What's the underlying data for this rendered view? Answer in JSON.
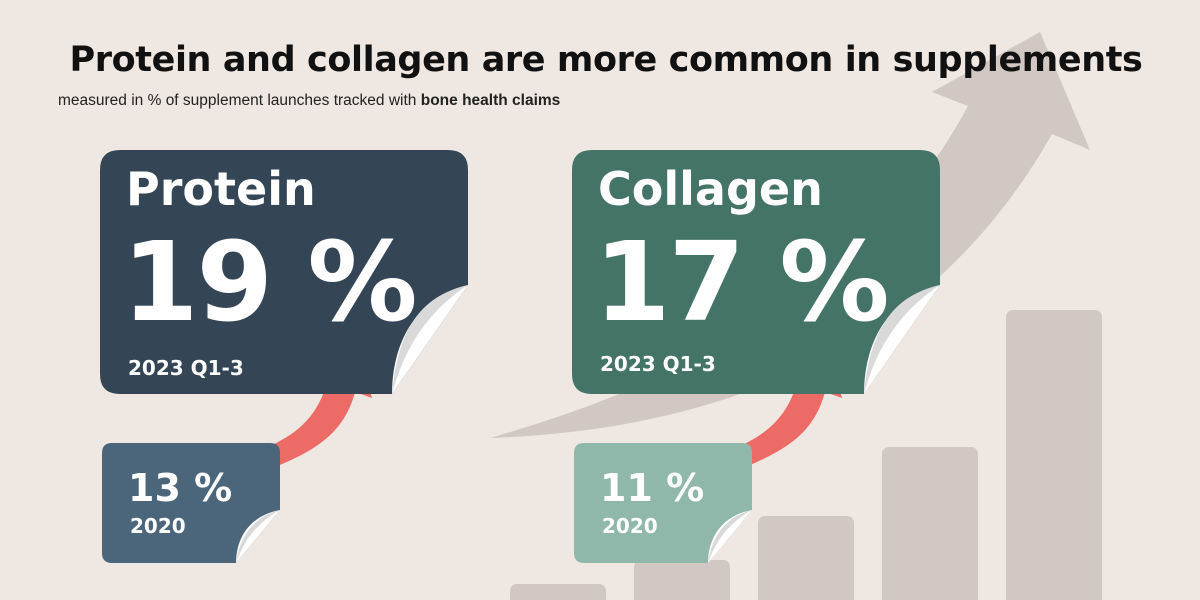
{
  "header": {
    "title": "Protein and collagen are more common in supplements",
    "subtitle_prefix": "measured in % of supplement launches tracked with ",
    "subtitle_bold": "bone health claims"
  },
  "colors": {
    "background": "#efe7e1",
    "decor": "#d1c7c3",
    "protein_dark": "#344655",
    "protein_light": "#4b667b",
    "collagen_dark": "#447467",
    "collagen_light": "#8fb8ab",
    "arrow": "#ec6b67"
  },
  "chart_data": {
    "type": "bar",
    "unit": "%",
    "categories": [
      "Protein",
      "Collagen"
    ],
    "series": [
      {
        "name": "2020",
        "values": [
          13,
          11
        ]
      },
      {
        "name": "2023 Q1-3",
        "values": [
          19,
          17
        ]
      }
    ],
    "labels": {
      "protein": {
        "name": "Protein",
        "value_2023": "19 %",
        "period_2023": "2023 Q1-3",
        "value_2020": "13 %",
        "period_2020": "2020"
      },
      "collagen": {
        "name": "Collagen",
        "value_2023": "17 %",
        "period_2023": "2023 Q1-3",
        "value_2020": "11 %",
        "period_2020": "2020"
      }
    }
  }
}
